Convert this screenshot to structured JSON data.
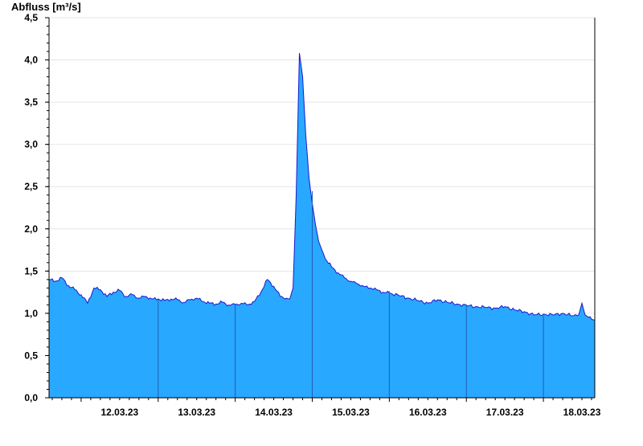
{
  "chart_data": {
    "type": "area",
    "title": "",
    "xlabel": "",
    "ylabel": "Abfluss [m³/s]",
    "ylim": [
      0,
      4.5
    ],
    "xlim": [
      "2023-03-11T14:00",
      "2023-03-18T16:00"
    ],
    "yticks": [
      {
        "value": 0.0,
        "label": "0,0"
      },
      {
        "value": 0.5,
        "label": "0,5"
      },
      {
        "value": 1.0,
        "label": "1,0"
      },
      {
        "value": 1.5,
        "label": "1,5"
      },
      {
        "value": 2.0,
        "label": "2,0"
      },
      {
        "value": 2.5,
        "label": "2,5"
      },
      {
        "value": 3.0,
        "label": "3,0"
      },
      {
        "value": 3.5,
        "label": "3,5"
      },
      {
        "value": 4.0,
        "label": "4,0"
      },
      {
        "value": 4.5,
        "label": "4,5"
      }
    ],
    "xticks": [
      {
        "value": "2023-03-12T12:00",
        "label": "12.03.23"
      },
      {
        "value": "2023-03-13T12:00",
        "label": "13.03.23"
      },
      {
        "value": "2023-03-14T12:00",
        "label": "14.03.23"
      },
      {
        "value": "2023-03-15T12:00",
        "label": "15.03.23"
      },
      {
        "value": "2023-03-16T12:00",
        "label": "16.03.23"
      },
      {
        "value": "2023-03-17T12:00",
        "label": "17.03.23"
      },
      {
        "value": "2023-03-18T12:00",
        "label": "18.03.23"
      }
    ],
    "day_boundaries": [
      "2023-03-13T00:00",
      "2023-03-14T00:00",
      "2023-03-15T00:00",
      "2023-03-16T00:00",
      "2023-03-17T00:00",
      "2023-03-18T00:00"
    ],
    "grid": true,
    "series": [
      {
        "x": [
          "2023-03-11T14:00",
          "2023-03-11T16:00",
          "2023-03-11T18:00",
          "2023-03-11T20:00",
          "2023-03-11T22:00",
          "2023-03-12T00:00",
          "2023-03-12T02:00",
          "2023-03-12T04:00",
          "2023-03-12T06:00",
          "2023-03-12T08:00",
          "2023-03-12T10:00",
          "2023-03-12T12:00",
          "2023-03-12T14:00",
          "2023-03-12T16:00",
          "2023-03-12T18:00",
          "2023-03-12T20:00",
          "2023-03-12T22:00",
          "2023-03-13T00:00",
          "2023-03-13T02:00",
          "2023-03-13T04:00",
          "2023-03-13T06:00",
          "2023-03-13T08:00",
          "2023-03-13T10:00",
          "2023-03-13T12:00",
          "2023-03-13T14:00",
          "2023-03-13T16:00",
          "2023-03-13T18:00",
          "2023-03-13T20:00",
          "2023-03-13T22:00",
          "2023-03-14T00:00",
          "2023-03-14T02:00",
          "2023-03-14T04:00",
          "2023-03-14T06:00",
          "2023-03-14T08:00",
          "2023-03-14T10:00",
          "2023-03-14T12:00",
          "2023-03-14T14:00",
          "2023-03-14T16:00",
          "2023-03-14T17:00",
          "2023-03-14T18:00",
          "2023-03-14T19:00",
          "2023-03-14T20:00",
          "2023-03-14T21:00",
          "2023-03-14T22:00",
          "2023-03-14T23:00",
          "2023-03-15T00:00",
          "2023-03-15T01:00",
          "2023-03-15T02:00",
          "2023-03-15T03:00",
          "2023-03-15T04:00",
          "2023-03-15T06:00",
          "2023-03-15T08:00",
          "2023-03-15T10:00",
          "2023-03-15T12:00",
          "2023-03-15T14:00",
          "2023-03-15T16:00",
          "2023-03-15T18:00",
          "2023-03-15T20:00",
          "2023-03-15T22:00",
          "2023-03-16T00:00",
          "2023-03-16T03:00",
          "2023-03-16T06:00",
          "2023-03-16T09:00",
          "2023-03-16T12:00",
          "2023-03-16T15:00",
          "2023-03-16T18:00",
          "2023-03-16T21:00",
          "2023-03-17T00:00",
          "2023-03-17T03:00",
          "2023-03-17T06:00",
          "2023-03-17T09:00",
          "2023-03-17T12:00",
          "2023-03-17T15:00",
          "2023-03-17T18:00",
          "2023-03-17T21:00",
          "2023-03-18T00:00",
          "2023-03-18T03:00",
          "2023-03-18T06:00",
          "2023-03-18T09:00",
          "2023-03-18T11:00",
          "2023-03-18T12:00",
          "2023-03-18T13:00",
          "2023-03-18T15:00",
          "2023-03-18T16:00"
        ],
        "values": [
          1.4,
          1.38,
          1.42,
          1.33,
          1.28,
          1.22,
          1.12,
          1.3,
          1.28,
          1.2,
          1.25,
          1.27,
          1.2,
          1.22,
          1.18,
          1.2,
          1.17,
          1.17,
          1.15,
          1.17,
          1.16,
          1.13,
          1.16,
          1.18,
          1.14,
          1.12,
          1.11,
          1.13,
          1.1,
          1.1,
          1.12,
          1.1,
          1.14,
          1.25,
          1.4,
          1.32,
          1.2,
          1.18,
          1.17,
          1.3,
          2.4,
          4.08,
          3.8,
          3.1,
          2.6,
          2.3,
          2.05,
          1.85,
          1.75,
          1.65,
          1.55,
          1.48,
          1.42,
          1.38,
          1.35,
          1.32,
          1.3,
          1.28,
          1.25,
          1.24,
          1.21,
          1.18,
          1.15,
          1.12,
          1.16,
          1.13,
          1.11,
          1.09,
          1.08,
          1.07,
          1.06,
          1.08,
          1.04,
          1.02,
          0.98,
          0.99,
          0.98,
          1.0,
          0.97,
          0.98,
          1.12,
          0.98,
          0.93,
          0.92
        ]
      }
    ]
  },
  "colors": {
    "fill": "#29a8ff",
    "line": "#1a1acc",
    "day_divider": "#1f5fb5",
    "grid": "#e6e6e6",
    "axis": "#000000"
  }
}
